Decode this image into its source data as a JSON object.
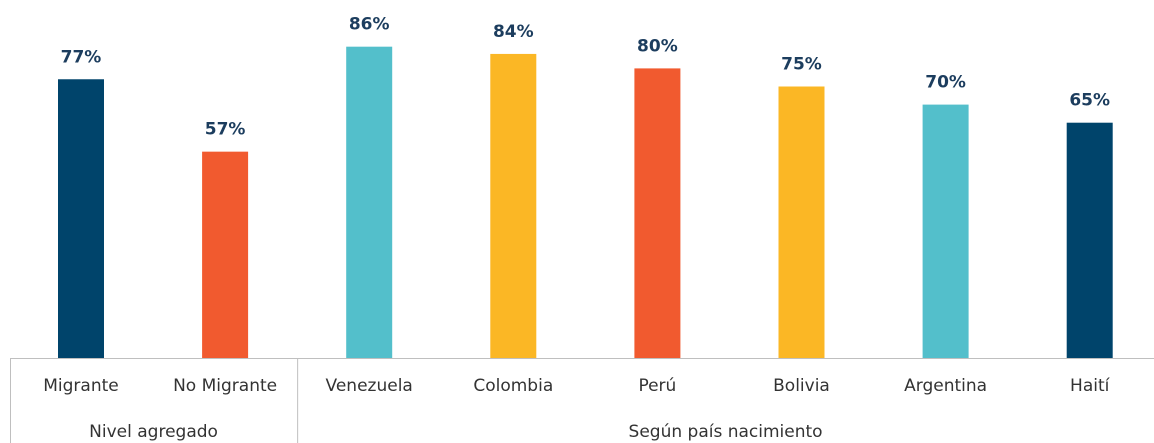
{
  "chart_data": {
    "type": "bar",
    "categories": [
      "Migrante",
      "No Migrante",
      "Venezuela",
      "Colombia",
      "Perú",
      "Bolivia",
      "Argentina",
      "Haití"
    ],
    "values": [
      77,
      57,
      86,
      84,
      80,
      75,
      70,
      65
    ],
    "value_labels": [
      "77%",
      "57%",
      "86%",
      "84%",
      "80%",
      "75%",
      "70%",
      "65%"
    ],
    "colors": [
      "#00446b",
      "#f15a2f",
      "#53bfcb",
      "#fbb725",
      "#f15a2f",
      "#fbb725",
      "#53bfcb",
      "#00446b"
    ],
    "groups": [
      {
        "label": "Nivel agregado",
        "size": 2
      },
      {
        "label": "Según país nacimiento",
        "size": 6
      }
    ]
  }
}
